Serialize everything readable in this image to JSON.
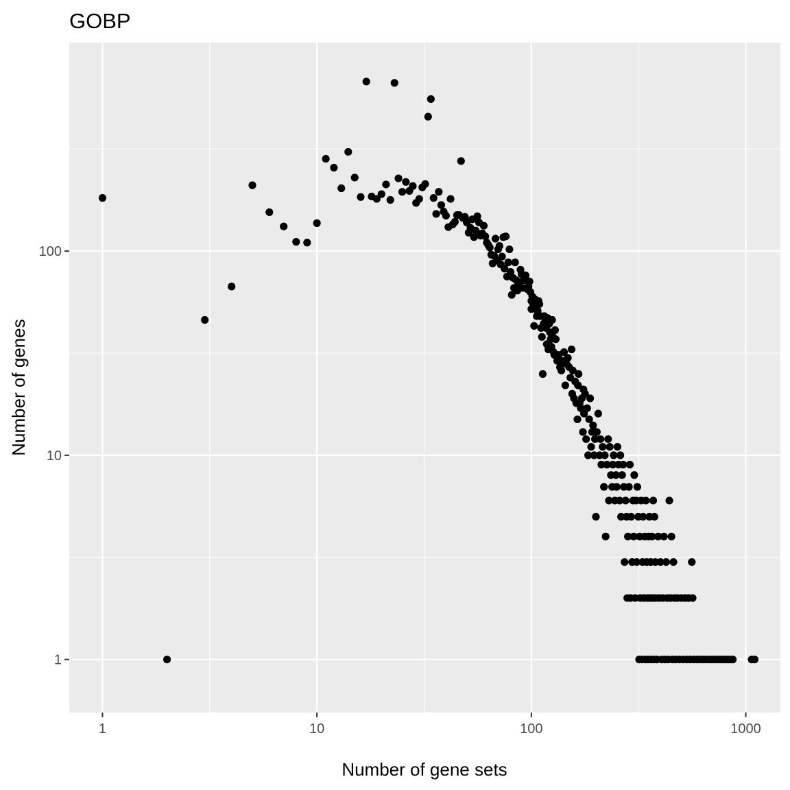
{
  "chart_data": {
    "type": "scatter",
    "title": "GOBP",
    "xlabel": "Number of gene sets",
    "ylabel": "Number of genes",
    "x_scale": "log10",
    "y_scale": "log10",
    "xlim": [
      0.7,
      1450
    ],
    "ylim": [
      0.55,
      1050
    ],
    "x_ticks": [
      1,
      10,
      100,
      1000
    ],
    "x_tick_labels": [
      "1",
      "10",
      "100",
      "1000"
    ],
    "y_ticks": [
      1,
      10,
      100
    ],
    "y_tick_labels": [
      "1",
      "10",
      "100"
    ],
    "grid": true,
    "panel_background": "#ebebeb",
    "grid_color": "#ffffff",
    "point_color": "#000000",
    "points": [
      [
        1,
        182
      ],
      [
        2,
        1
      ],
      [
        3,
        46
      ],
      [
        4,
        67
      ],
      [
        5,
        210
      ],
      [
        6,
        155
      ],
      [
        7,
        132
      ],
      [
        8,
        111
      ],
      [
        9,
        110
      ],
      [
        10,
        137
      ],
      [
        11,
        283
      ],
      [
        12,
        256
      ],
      [
        13,
        203
      ],
      [
        14,
        306
      ],
      [
        15,
        229
      ],
      [
        16,
        184
      ],
      [
        17,
        676
      ],
      [
        18,
        185
      ],
      [
        19,
        180
      ],
      [
        20,
        190
      ],
      [
        21,
        212
      ],
      [
        22,
        178
      ],
      [
        23,
        666
      ],
      [
        24,
        227
      ],
      [
        25,
        195
      ],
      [
        26,
        218
      ],
      [
        27,
        197
      ],
      [
        28,
        208
      ],
      [
        29,
        172
      ],
      [
        30,
        180
      ],
      [
        31,
        205
      ],
      [
        32,
        213
      ],
      [
        33,
        455
      ],
      [
        34,
        555
      ],
      [
        35,
        182
      ],
      [
        36,
        152
      ],
      [
        37,
        195
      ],
      [
        38,
        168
      ],
      [
        39,
        156
      ],
      [
        40,
        149
      ],
      [
        41,
        131
      ],
      [
        42,
        180
      ],
      [
        43,
        135
      ],
      [
        44,
        139
      ],
      [
        45,
        150
      ],
      [
        46,
        150
      ],
      [
        47,
        276
      ],
      [
        48,
        145
      ],
      [
        49,
        147
      ],
      [
        50,
        138
      ],
      [
        51,
        123
      ],
      [
        52,
        130
      ],
      [
        53,
        143
      ],
      [
        54,
        117
      ],
      [
        55,
        126
      ],
      [
        56,
        148
      ],
      [
        57,
        138
      ],
      [
        58,
        119
      ],
      [
        59,
        122
      ],
      [
        60,
        133
      ],
      [
        61,
        118
      ],
      [
        62,
        110
      ],
      [
        63,
        107
      ],
      [
        64,
        104
      ],
      [
        65,
        96
      ],
      [
        66,
        87
      ],
      [
        67,
        95
      ],
      [
        68,
        115
      ],
      [
        69,
        90
      ],
      [
        70,
        102
      ],
      [
        71,
        106
      ],
      [
        72,
        86
      ],
      [
        73,
        94
      ],
      [
        74,
        117
      ],
      [
        75,
        82
      ],
      [
        76,
        118
      ],
      [
        77,
        75
      ],
      [
        78,
        88
      ],
      [
        79,
        102
      ],
      [
        80,
        79
      ],
      [
        81,
        61
      ],
      [
        82,
        74
      ],
      [
        83,
        66
      ],
      [
        84,
        88
      ],
      [
        85,
        72
      ],
      [
        86,
        64
      ],
      [
        87,
        68
      ],
      [
        88,
        68
      ],
      [
        89,
        81
      ],
      [
        90,
        77
      ],
      [
        91,
        66
      ],
      [
        92,
        72
      ],
      [
        93,
        72
      ],
      [
        94,
        76
      ],
      [
        95,
        66
      ],
      [
        96,
        65
      ],
      [
        97,
        67
      ],
      [
        98,
        71
      ],
      [
        99,
        63
      ],
      [
        100,
        52
      ],
      [
        100,
        57
      ],
      [
        101,
        60
      ],
      [
        102,
        55
      ],
      [
        103,
        43
      ],
      [
        104,
        58
      ],
      [
        105,
        52
      ],
      [
        106,
        48
      ],
      [
        107,
        51
      ],
      [
        108,
        57
      ],
      [
        109,
        55
      ],
      [
        110,
        48
      ],
      [
        111,
        42
      ],
      [
        112,
        38
      ],
      [
        113,
        25
      ],
      [
        114,
        44
      ],
      [
        115,
        48
      ],
      [
        116,
        45
      ],
      [
        117,
        42
      ],
      [
        118,
        35
      ],
      [
        119,
        47
      ],
      [
        120,
        33
      ],
      [
        121,
        44
      ],
      [
        122,
        40
      ],
      [
        123,
        37
      ],
      [
        124,
        34
      ],
      [
        125,
        46
      ],
      [
        126,
        38
      ],
      [
        127,
        32
      ],
      [
        128,
        31
      ],
      [
        129,
        41
      ],
      [
        130,
        37
      ],
      [
        132,
        29
      ],
      [
        134,
        31
      ],
      [
        136,
        27
      ],
      [
        138,
        26
      ],
      [
        140,
        29
      ],
      [
        142,
        32
      ],
      [
        144,
        22
      ],
      [
        146,
        28
      ],
      [
        148,
        30
      ],
      [
        150,
        27
      ],
      [
        152,
        24
      ],
      [
        154,
        33
      ],
      [
        155,
        20
      ],
      [
        156,
        26
      ],
      [
        158,
        19
      ],
      [
        160,
        23
      ],
      [
        162,
        18
      ],
      [
        164,
        15
      ],
      [
        165,
        22
      ],
      [
        166,
        25
      ],
      [
        168,
        18
      ],
      [
        170,
        17
      ],
      [
        172,
        19
      ],
      [
        174,
        13
      ],
      [
        175,
        21
      ],
      [
        176,
        16
      ],
      [
        178,
        20
      ],
      [
        180,
        12
      ],
      [
        182,
        17
      ],
      [
        184,
        10
      ],
      [
        186,
        15
      ],
      [
        188,
        19
      ],
      [
        190,
        11
      ],
      [
        192,
        13
      ],
      [
        194,
        14
      ],
      [
        196,
        10
      ],
      [
        198,
        12
      ],
      [
        200,
        5
      ],
      [
        202,
        13
      ],
      [
        205,
        16
      ],
      [
        208,
        10
      ],
      [
        210,
        12
      ],
      [
        212,
        9
      ],
      [
        215,
        11
      ],
      [
        218,
        7
      ],
      [
        220,
        10
      ],
      [
        222,
        4
      ],
      [
        225,
        9
      ],
      [
        228,
        12
      ],
      [
        230,
        6
      ],
      [
        232,
        11
      ],
      [
        235,
        8
      ],
      [
        238,
        7
      ],
      [
        240,
        9
      ],
      [
        242,
        10
      ],
      [
        245,
        6
      ],
      [
        248,
        8
      ],
      [
        250,
        7
      ],
      [
        252,
        11
      ],
      [
        255,
        9
      ],
      [
        258,
        6
      ],
      [
        260,
        10
      ],
      [
        262,
        5
      ],
      [
        265,
        8
      ],
      [
        268,
        9
      ],
      [
        270,
        7
      ],
      [
        272,
        3
      ],
      [
        275,
        6
      ],
      [
        278,
        5
      ],
      [
        280,
        2
      ],
      [
        282,
        4
      ],
      [
        285,
        7
      ],
      [
        288,
        9
      ],
      [
        290,
        2
      ],
      [
        292,
        5
      ],
      [
        295,
        3
      ],
      [
        298,
        6
      ],
      [
        300,
        4
      ],
      [
        302,
        8
      ],
      [
        305,
        2
      ],
      [
        308,
        6
      ],
      [
        310,
        3
      ],
      [
        312,
        7
      ],
      [
        315,
        5
      ],
      [
        318,
        1
      ],
      [
        320,
        4
      ],
      [
        322,
        2
      ],
      [
        325,
        6
      ],
      [
        328,
        1
      ],
      [
        330,
        3
      ],
      [
        332,
        5
      ],
      [
        335,
        2
      ],
      [
        338,
        4
      ],
      [
        340,
        1
      ],
      [
        342,
        6
      ],
      [
        345,
        3
      ],
      [
        348,
        2
      ],
      [
        350,
        1
      ],
      [
        352,
        4
      ],
      [
        355,
        5
      ],
      [
        358,
        2
      ],
      [
        360,
        3
      ],
      [
        362,
        1
      ],
      [
        365,
        4
      ],
      [
        368,
        2
      ],
      [
        370,
        6
      ],
      [
        372,
        1
      ],
      [
        375,
        5
      ],
      [
        378,
        3
      ],
      [
        380,
        2
      ],
      [
        385,
        1
      ],
      [
        390,
        4
      ],
      [
        395,
        2
      ],
      [
        400,
        3
      ],
      [
        405,
        1
      ],
      [
        410,
        2
      ],
      [
        415,
        4
      ],
      [
        420,
        1
      ],
      [
        425,
        3
      ],
      [
        430,
        2
      ],
      [
        435,
        1
      ],
      [
        440,
        6
      ],
      [
        445,
        2
      ],
      [
        450,
        4
      ],
      [
        455,
        1
      ],
      [
        460,
        3
      ],
      [
        465,
        2
      ],
      [
        470,
        1
      ],
      [
        480,
        2
      ],
      [
        490,
        1
      ],
      [
        500,
        2
      ],
      [
        510,
        1
      ],
      [
        520,
        2
      ],
      [
        530,
        1
      ],
      [
        540,
        2
      ],
      [
        550,
        1
      ],
      [
        560,
        3
      ],
      [
        565,
        2
      ],
      [
        570,
        1
      ],
      [
        590,
        1
      ],
      [
        610,
        1
      ],
      [
        630,
        1
      ],
      [
        650,
        1
      ],
      [
        670,
        1
      ],
      [
        690,
        1
      ],
      [
        710,
        1
      ],
      [
        730,
        1
      ],
      [
        750,
        1
      ],
      [
        770,
        1
      ],
      [
        790,
        1
      ],
      [
        810,
        1
      ],
      [
        830,
        1
      ],
      [
        850,
        1
      ],
      [
        870,
        1
      ],
      [
        1065,
        1
      ],
      [
        1100,
        1
      ]
    ]
  }
}
